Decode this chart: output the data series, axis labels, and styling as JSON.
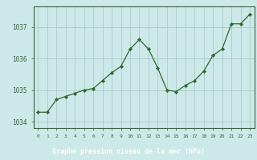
{
  "x": [
    0,
    1,
    2,
    3,
    4,
    5,
    6,
    7,
    8,
    9,
    10,
    11,
    12,
    13,
    14,
    15,
    16,
    17,
    18,
    19,
    20,
    21,
    22,
    23
  ],
  "y": [
    1034.3,
    1034.3,
    1034.7,
    1034.8,
    1034.9,
    1035.0,
    1035.05,
    1035.3,
    1035.55,
    1035.75,
    1036.3,
    1036.6,
    1036.3,
    1035.7,
    1035.0,
    1034.95,
    1035.15,
    1035.3,
    1035.6,
    1036.1,
    1036.3,
    1037.1,
    1037.1,
    1037.4
  ],
  "line_color": "#2d6a2d",
  "marker_color": "#2d6a2d",
  "bg_color": "#cce8e8",
  "grid_color": "#aacccc",
  "border_color": "#336633",
  "title": "Graphe pression niveau de la mer (hPa)",
  "title_color": "#ffffff",
  "title_bar_color": "#336633",
  "yticks": [
    1034,
    1035,
    1036,
    1037
  ],
  "ylim": [
    1033.8,
    1037.65
  ],
  "xlim": [
    -0.5,
    23.5
  ],
  "tick_color": "#336633"
}
